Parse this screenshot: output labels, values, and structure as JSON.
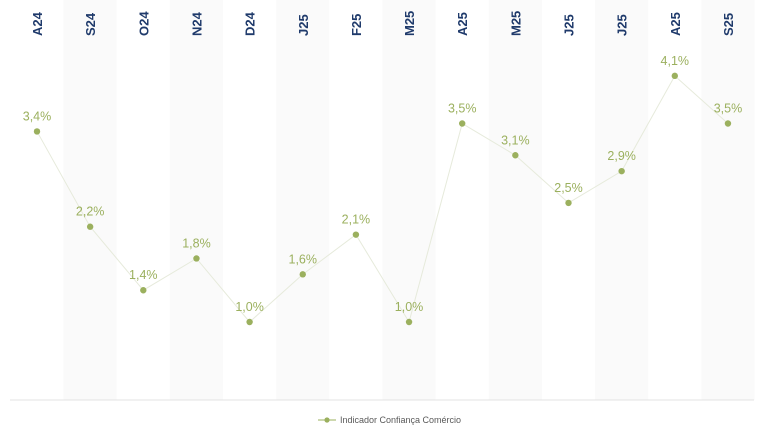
{
  "chart_data": {
    "type": "line",
    "categories": [
      "A24",
      "S24",
      "O24",
      "N24",
      "D24",
      "J25",
      "F25",
      "M25",
      "A25",
      "M25",
      "J25",
      "J25",
      "A25",
      "S25"
    ],
    "series": [
      {
        "name": "Indicador Confiança Comércio",
        "values": [
          3.4,
          2.2,
          1.4,
          1.8,
          1.0,
          1.6,
          2.1,
          1.0,
          3.5,
          3.1,
          2.5,
          2.9,
          4.1,
          3.5
        ],
        "labels": [
          "3,4%",
          "2,2%",
          "1,4%",
          "1,8%",
          "1,0%",
          "1,6%",
          "2,1%",
          "1,0%",
          "3,5%",
          "3,1%",
          "2,5%",
          "2,9%",
          "4,1%",
          "3,5%"
        ]
      }
    ],
    "legend": "bottom-center",
    "grid": false,
    "colors": {
      "series": "#9bb05e",
      "line": "#e6eadb",
      "tick_labels": "#1f3a6b",
      "legend_text": "#595959",
      "divider": "#e3e3e3",
      "column_band": "#fafafa"
    }
  }
}
